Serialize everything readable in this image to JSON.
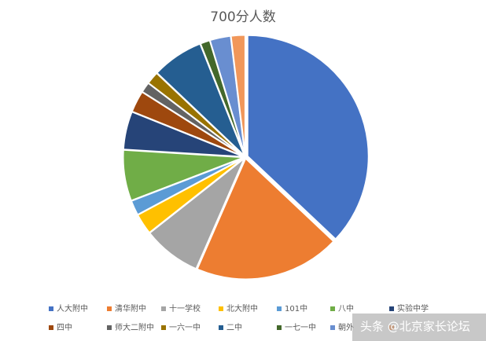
{
  "chart_data": {
    "type": "pie",
    "title": "700分人数",
    "categories": [
      "人大附中",
      "清华附中",
      "十一学校",
      "北大附中",
      "101中",
      "八中",
      "实验中学",
      "四中",
      "师大二附中",
      "一六一中",
      "二中",
      "一七一中",
      "朝外",
      null
    ],
    "values": [
      37,
      19.5,
      7.8,
      2.8,
      2,
      6.8,
      5.1,
      2.9,
      1.4,
      1.7,
      6.9,
      1.3,
      2.8,
      1.9
    ],
    "colors": [
      "#4472c4",
      "#ed7d31",
      "#a5a5a5",
      "#ffc000",
      "#5b9bd5",
      "#70ad47",
      "#264478",
      "#9e480e",
      "#636363",
      "#997300",
      "#255e91",
      "#43682b",
      "#698ed0",
      "#f1975a"
    ],
    "watermark": "头条 @北京家长论坛"
  }
}
